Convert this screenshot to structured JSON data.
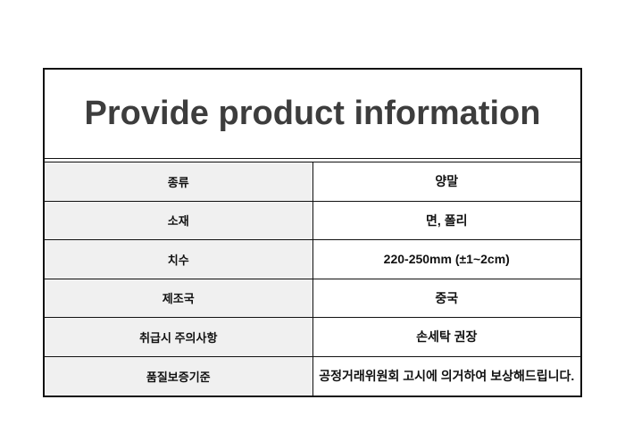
{
  "title": "Provide product information",
  "table": {
    "rows": [
      {
        "label": "종류",
        "value": "양말"
      },
      {
        "label": "소재",
        "value": "면, 폴리"
      },
      {
        "label": "치수",
        "value": "220-250mm (±1~2cm)"
      },
      {
        "label": "제조국",
        "value": "중국"
      },
      {
        "label": "취급시 주의사항",
        "value": "손세탁 권장"
      },
      {
        "label": "품질보증기준",
        "value": "공정거래위원회 고시에 의거하여 보상해드립니다."
      }
    ]
  },
  "colors": {
    "border": "#111111",
    "label_bg": "#f0f0f0",
    "title_text": "#3d3d3d",
    "cell_text": "#111111",
    "page_bg": "#ffffff"
  }
}
